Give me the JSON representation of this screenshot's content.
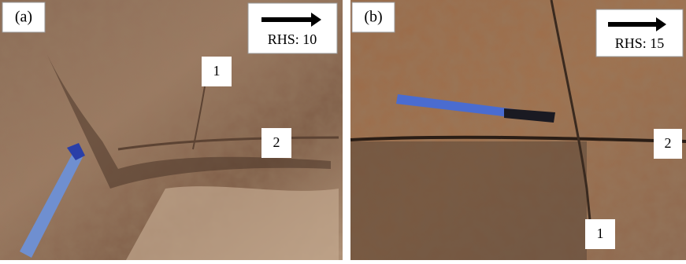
{
  "panels": [
    {
      "label": "(a)",
      "scale": "RHS: 10",
      "markers": [
        "1",
        "2"
      ]
    },
    {
      "label": "(b)",
      "scale": "RHS: 15",
      "markers": [
        "1",
        "2"
      ]
    }
  ]
}
